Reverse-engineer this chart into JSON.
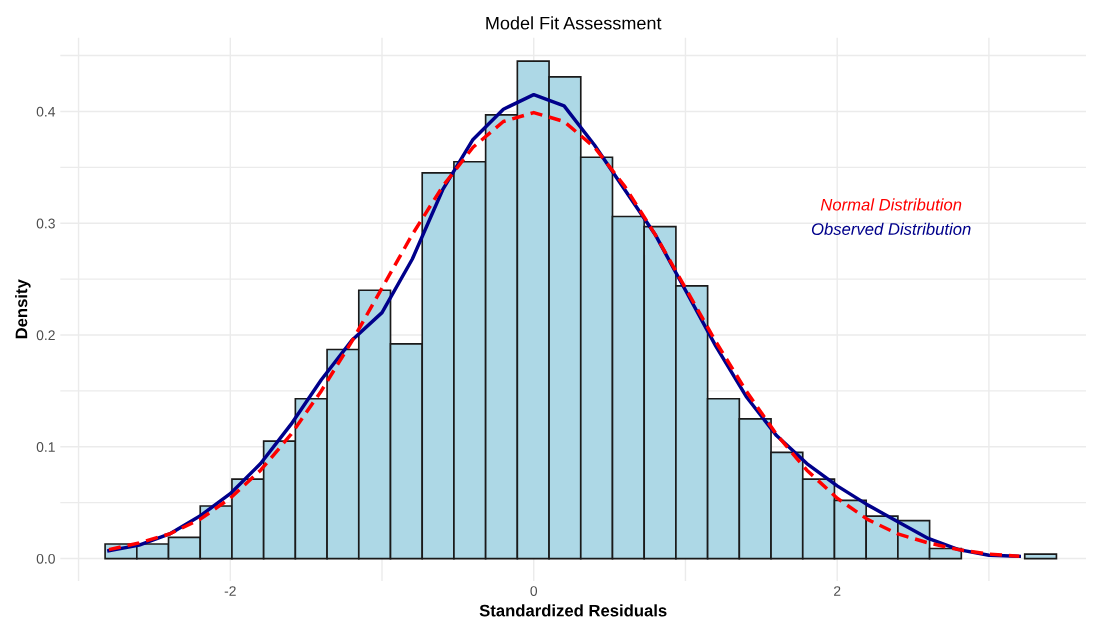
{
  "chart_data": {
    "type": "histogram",
    "title": "Model Fit Assessment",
    "xlabel": "Standardized Residuals",
    "ylabel": "Density",
    "bins": [
      -2.825,
      -2.616,
      -2.407,
      -2.198,
      -1.989,
      -1.78,
      -1.571,
      -1.362,
      -1.153,
      -0.944,
      -0.735,
      -0.526,
      -0.317,
      -0.108,
      0.101,
      0.31,
      0.519,
      0.728,
      0.937,
      1.146,
      1.355,
      1.564,
      1.773,
      1.982,
      2.191,
      2.4,
      2.609,
      2.818,
      3.027,
      3.236,
      3.445
    ],
    "values": [
      0.013,
      0.013,
      0.019,
      0.047,
      0.071,
      0.105,
      0.143,
      0.187,
      0.24,
      0.192,
      0.345,
      0.355,
      0.397,
      0.445,
      0.431,
      0.359,
      0.306,
      0.297,
      0.244,
      0.143,
      0.125,
      0.095,
      0.071,
      0.052,
      0.038,
      0.034,
      0.009,
      0,
      0,
      0.004
    ],
    "color": "#add8e6",
    "series": [
      {
        "name": "Normal Distribution",
        "type": "line",
        "color": "#ff0000",
        "line_style": "dashed",
        "x": [
          -2.8,
          -2.6,
          -2.4,
          -2.2,
          -2.0,
          -1.8,
          -1.6,
          -1.4,
          -1.2,
          -1.0,
          -0.8,
          -0.6,
          -0.4,
          -0.2,
          0,
          0.2,
          0.4,
          0.6,
          0.8,
          1.0,
          1.2,
          1.4,
          1.6,
          1.8,
          2.0,
          2.2,
          2.4,
          2.6,
          2.8,
          3.0,
          3.2
        ],
        "values": [
          0.008,
          0.014,
          0.022,
          0.035,
          0.054,
          0.079,
          0.111,
          0.15,
          0.194,
          0.242,
          0.29,
          0.333,
          0.368,
          0.391,
          0.399,
          0.391,
          0.368,
          0.333,
          0.29,
          0.242,
          0.194,
          0.15,
          0.111,
          0.079,
          0.054,
          0.035,
          0.022,
          0.014,
          0.008,
          0.004,
          0.002
        ]
      },
      {
        "name": "Observed Distribution",
        "type": "line",
        "color": "#00008b",
        "line_style": "solid",
        "x": [
          -2.8,
          -2.6,
          -2.4,
          -2.2,
          -2.0,
          -1.8,
          -1.6,
          -1.4,
          -1.2,
          -1.0,
          -0.8,
          -0.6,
          -0.4,
          -0.2,
          0,
          0.2,
          0.4,
          0.6,
          0.8,
          1.0,
          1.2,
          1.4,
          1.6,
          1.8,
          2.0,
          2.2,
          2.4,
          2.6,
          2.8,
          3.0,
          3.2
        ],
        "values": [
          0.007,
          0.012,
          0.022,
          0.038,
          0.058,
          0.085,
          0.12,
          0.16,
          0.195,
          0.22,
          0.268,
          0.33,
          0.375,
          0.402,
          0.415,
          0.405,
          0.37,
          0.33,
          0.29,
          0.24,
          0.19,
          0.145,
          0.11,
          0.085,
          0.065,
          0.048,
          0.033,
          0.018,
          0.008,
          0.003,
          0.002
        ]
      }
    ],
    "xlim": [
      -3.12,
      3.64
    ],
    "ylim": [
      -0.02,
      0.466
    ],
    "xticks": [
      {
        "value": -3,
        "label": null
      },
      -2,
      {
        "value": -1,
        "label": null
      },
      0,
      {
        "value": 1,
        "label": null
      },
      2,
      {
        "value": 3,
        "label": null
      }
    ],
    "yticks": [
      {
        "value": 0,
        "label": "0.0"
      },
      {
        "value": 0.05,
        "label": null
      },
      0.1,
      {
        "value": 0.15,
        "label": null
      },
      0.2,
      {
        "value": 0.25,
        "label": null
      },
      0.3,
      {
        "value": 0.35,
        "label": null
      },
      0.4,
      {
        "value": 0.45,
        "label": null
      }
    ],
    "grid": true,
    "legend": "right"
  }
}
